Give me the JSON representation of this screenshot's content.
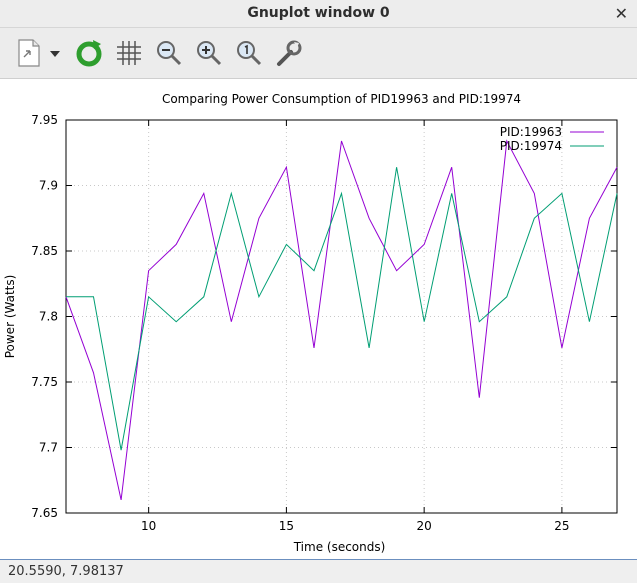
{
  "window": {
    "title": "Gnuplot window 0"
  },
  "toolbar": {
    "buttons": [
      {
        "name": "export-icon"
      },
      {
        "name": "dropdown-arrow-icon"
      },
      {
        "name": "replot-icon"
      },
      {
        "name": "grid-icon"
      },
      {
        "name": "zoom-out-icon"
      },
      {
        "name": "zoom-in-icon"
      },
      {
        "name": "zoom-reset-icon"
      },
      {
        "name": "settings-wrench-icon"
      }
    ]
  },
  "status": {
    "coords": "20.5590,  7.98137"
  },
  "colors": {
    "series1": "#9400d3",
    "series2": "#009e73",
    "statusbar_border": "#6b8fbf"
  },
  "chart_data": {
    "type": "line",
    "title": "Comparing Power Consumption of PID19963 and PID:19974",
    "xlabel": "Time (seconds)",
    "ylabel": "Power (Watts)",
    "xlim": [
      7,
      27
    ],
    "ylim": [
      7.65,
      7.95
    ],
    "xticks": [
      10,
      15,
      20,
      25
    ],
    "xtick_labels": [
      "10",
      "15",
      "20",
      "25"
    ],
    "yticks": [
      7.65,
      7.7,
      7.75,
      7.8,
      7.85,
      7.9,
      7.95
    ],
    "ytick_labels": [
      "7.65",
      "7.7",
      "7.75",
      "7.8",
      "7.85",
      "7.9",
      "7.95"
    ],
    "grid": true,
    "legend_position": "top-right",
    "series": [
      {
        "name": "PID:19963",
        "x": [
          7,
          8,
          9,
          10,
          11,
          12,
          13,
          14,
          15,
          16,
          17,
          18,
          19,
          20,
          21,
          22,
          23,
          24,
          25,
          26,
          27
        ],
        "y": [
          7.815,
          7.757,
          7.66,
          7.835,
          7.855,
          7.894,
          7.796,
          7.875,
          7.914,
          7.776,
          7.934,
          7.875,
          7.835,
          7.855,
          7.914,
          7.738,
          7.934,
          7.894,
          7.776,
          7.875,
          7.914
        ]
      },
      {
        "name": "PID:19974",
        "x": [
          7,
          8,
          9,
          10,
          11,
          12,
          13,
          14,
          15,
          16,
          17,
          18,
          19,
          20,
          21,
          22,
          23,
          24,
          25,
          26,
          27
        ],
        "y": [
          7.815,
          7.815,
          7.698,
          7.815,
          7.796,
          7.815,
          7.894,
          7.815,
          7.855,
          7.835,
          7.894,
          7.776,
          7.914,
          7.796,
          7.894,
          7.796,
          7.815,
          7.875,
          7.894,
          7.796,
          7.894
        ]
      }
    ]
  }
}
